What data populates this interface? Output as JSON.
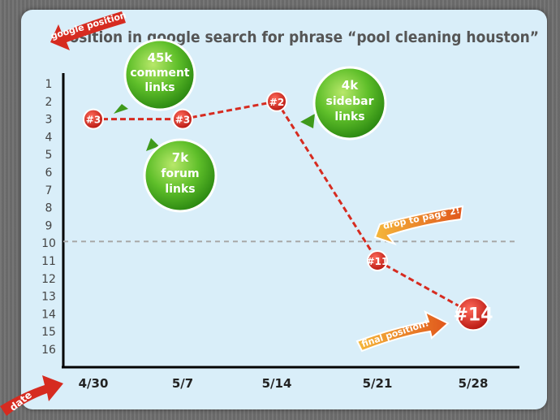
{
  "chart_data": {
    "type": "line",
    "title": "position in google search for phrase “pool cleaning houston”",
    "ylabel": "google position",
    "xlabel": "date",
    "x_ticks": [
      "4/30",
      "5/7",
      "5/14",
      "5/21",
      "5/28"
    ],
    "y_ticks": [
      "1",
      "2",
      "3",
      "4",
      "5",
      "6",
      "7",
      "8",
      "9",
      "10",
      "11",
      "12",
      "13",
      "14",
      "15",
      "16"
    ],
    "ylim": [
      1,
      16
    ],
    "reference_line": 10,
    "series": [
      {
        "points": [
          {
            "x": 0,
            "y": 3,
            "label": "#3"
          },
          {
            "x": 1,
            "y": 3,
            "label": "#3"
          },
          {
            "x": 2,
            "y": 2,
            "label": "#2"
          },
          {
            "x": 3,
            "y": 11,
            "label": "#11"
          },
          {
            "x": 4,
            "y": 14,
            "label": "#14"
          }
        ],
        "color": "#d62b20"
      }
    ],
    "annotations": {
      "bubble_45k": [
        "45k",
        "comment",
        "links"
      ],
      "bubble_7k": [
        "7k",
        "forum",
        "links"
      ],
      "bubble_4k": [
        "4k",
        "sidebar",
        "links"
      ],
      "drop": "drop to page 2!",
      "final": "final position!"
    }
  }
}
